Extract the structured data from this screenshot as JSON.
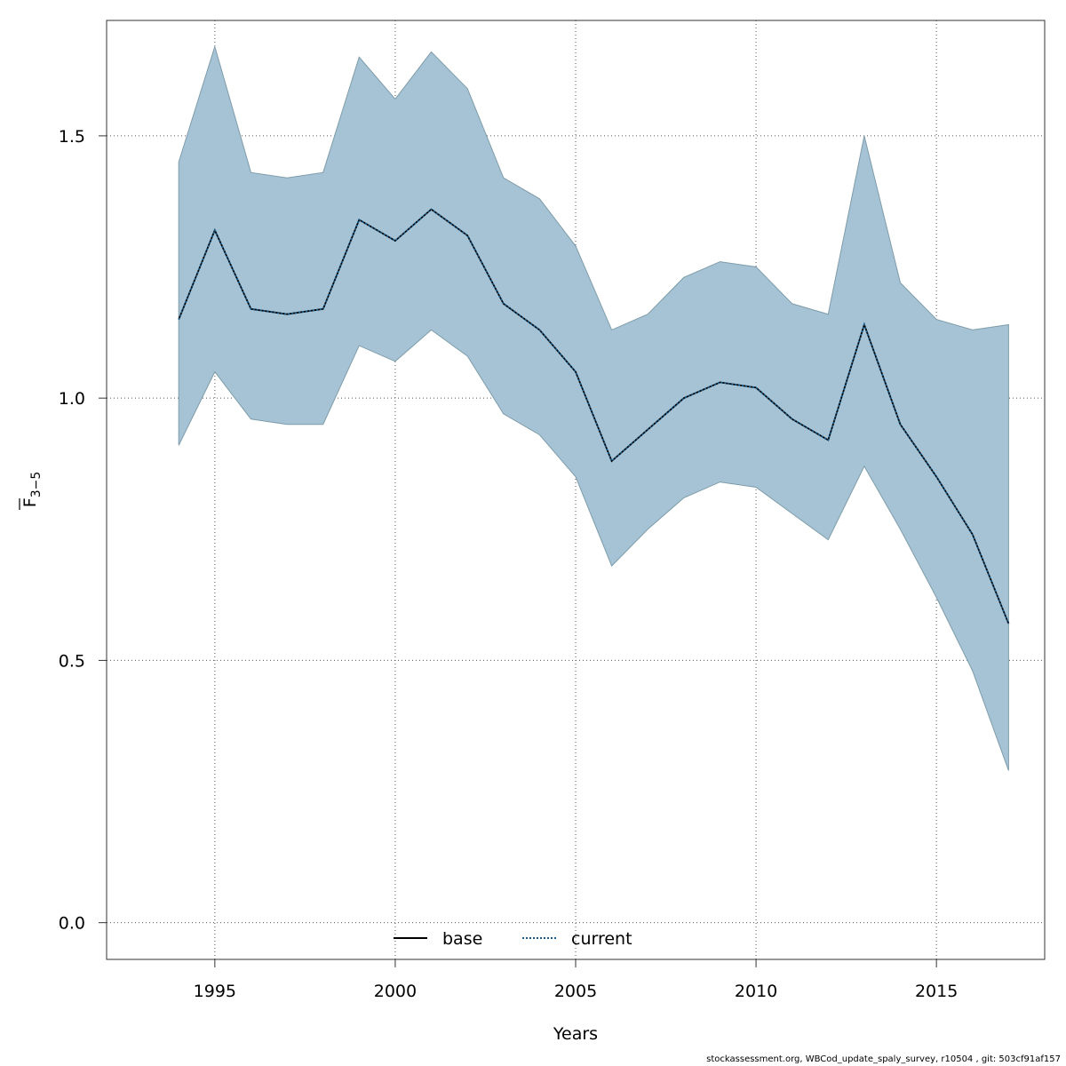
{
  "chart_data": {
    "type": "area",
    "xlabel": "Years",
    "ylabel": "F̄3−5",
    "ylabel_main": "F",
    "ylabel_sub": "3−5",
    "xlim": [
      1992,
      2018
    ],
    "ylim": [
      -0.07,
      1.72
    ],
    "x_ticks": [
      1995,
      2000,
      2005,
      2010,
      2015
    ],
    "y_ticks": [
      0.0,
      0.5,
      1.0,
      1.5
    ],
    "x_tick_labels": [
      "1995",
      "2000",
      "2005",
      "2010",
      "2015"
    ],
    "y_tick_labels": [
      "0.0",
      "0.5",
      "1.0",
      "1.5"
    ],
    "grid": true,
    "legend_position": "bottom-center",
    "x": [
      1994,
      1995,
      1996,
      1997,
      1998,
      1999,
      2000,
      2001,
      2002,
      2003,
      2004,
      2005,
      2006,
      2007,
      2008,
      2009,
      2010,
      2011,
      2012,
      2013,
      2014,
      2015,
      2016,
      2017
    ],
    "band": {
      "upper": [
        1.45,
        1.67,
        1.43,
        1.42,
        1.43,
        1.65,
        1.57,
        1.66,
        1.59,
        1.42,
        1.38,
        1.29,
        1.13,
        1.16,
        1.23,
        1.26,
        1.25,
        1.18,
        1.16,
        1.5,
        1.22,
        1.15,
        1.13,
        1.14
      ],
      "lower": [
        0.91,
        1.05,
        0.96,
        0.95,
        0.95,
        1.1,
        1.07,
        1.13,
        1.08,
        0.97,
        0.93,
        0.85,
        0.68,
        0.75,
        0.81,
        0.84,
        0.83,
        0.78,
        0.73,
        0.87,
        0.75,
        0.62,
        0.48,
        0.29
      ],
      "color": "#a5c3d4"
    },
    "series": [
      {
        "name": "base",
        "values": [
          1.15,
          1.32,
          1.17,
          1.16,
          1.17,
          1.34,
          1.3,
          1.36,
          1.31,
          1.18,
          1.13,
          1.05,
          0.88,
          0.94,
          1.0,
          1.03,
          1.02,
          0.96,
          0.92,
          1.14,
          0.95,
          0.85,
          0.74,
          0.57
        ],
        "color": "#000000",
        "style": "solid"
      },
      {
        "name": "current",
        "values": [
          1.15,
          1.32,
          1.17,
          1.16,
          1.17,
          1.34,
          1.3,
          1.36,
          1.31,
          1.18,
          1.13,
          1.05,
          0.88,
          0.94,
          1.0,
          1.03,
          1.02,
          0.96,
          0.92,
          1.14,
          0.95,
          0.85,
          0.74,
          0.57
        ],
        "color": "#1a5f8f",
        "style": "dotted"
      }
    ]
  },
  "footer": "stockassessment.org, WBCod_update_spaly_survey, r10504 , git: 503cf91af157"
}
